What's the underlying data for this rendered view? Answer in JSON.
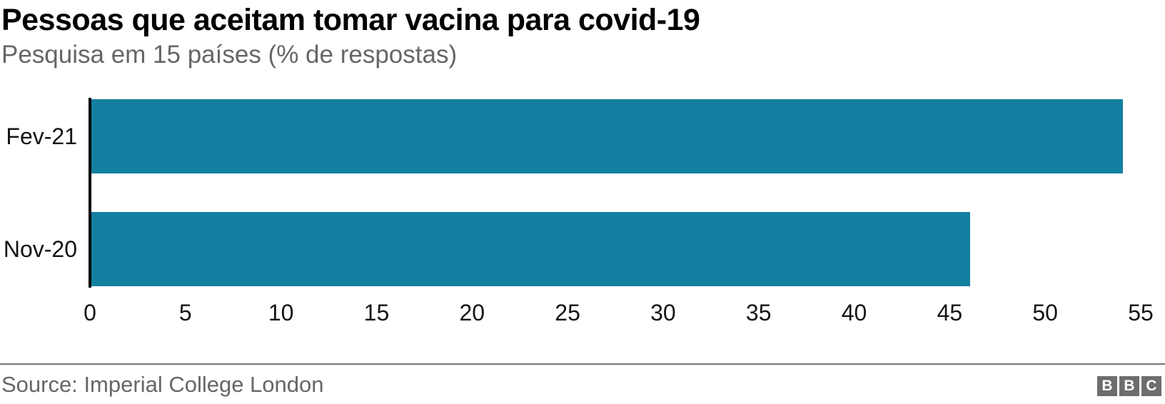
{
  "chart": {
    "source": "Source: Imperial College London",
    "logo_letters": [
      "B",
      "B",
      "C"
    ],
    "colors": {
      "bar": "#1380A1",
      "axis_line": "#000000",
      "title_text": "#000000",
      "muted_text": "#666666",
      "tick_text": "#141414",
      "divider": "#757575",
      "logo_square": "#6d6d70",
      "background": "#ffffff"
    }
  },
  "chart_data": {
    "type": "bar",
    "orientation": "horizontal",
    "title": "Pessoas que aceitam tomar vacina para covid-19",
    "subtitle": "Pesquisa em 15 países (% de respostas)",
    "categories": [
      "Fev-21",
      "Nov-20"
    ],
    "values": [
      54,
      46
    ],
    "xlabel": "",
    "ylabel": "",
    "xlim": [
      0,
      55
    ],
    "xticks": [
      0,
      5,
      10,
      15,
      20,
      25,
      30,
      35,
      40,
      45,
      50,
      55
    ],
    "grid": false,
    "legend": false,
    "bar_color": "#1380A1"
  }
}
